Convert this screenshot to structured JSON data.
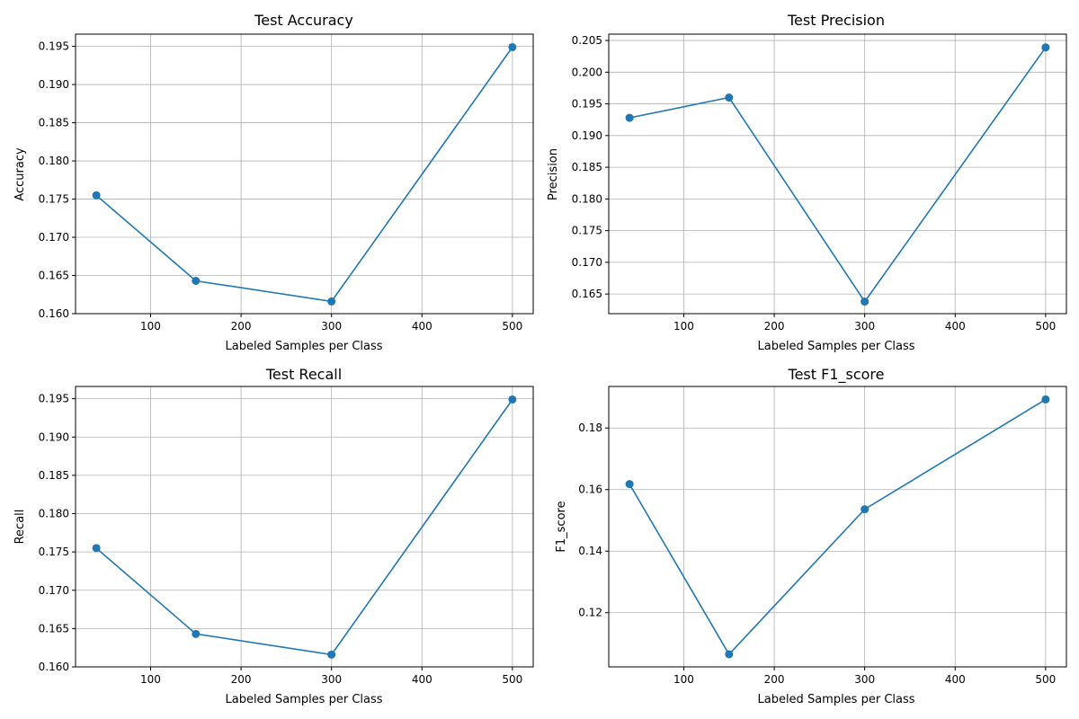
{
  "colors": {
    "series": "#1f77b4",
    "grid": "#b0b0b0",
    "axes": "#000000",
    "background": "#ffffff"
  },
  "chart_data": [
    {
      "type": "line",
      "title": "Test Accuracy",
      "xlabel": "Labeled Samples per Class",
      "ylabel": "Accuracy",
      "grid": true,
      "marker": "circle",
      "x": [
        40,
        150,
        300,
        500
      ],
      "series": [
        {
          "values": [
            0.1755,
            0.1643,
            0.1616,
            0.1949
          ]
        }
      ],
      "xlim": [
        17,
        523
      ],
      "ylim": [
        0.16,
        0.1966
      ],
      "xticks": [
        100,
        200,
        300,
        400,
        500
      ],
      "yticks": [
        0.16,
        0.165,
        0.17,
        0.175,
        0.18,
        0.185,
        0.19,
        0.195
      ],
      "xtick_labels": [
        "100",
        "200",
        "300",
        "400",
        "500"
      ],
      "ytick_labels": [
        "0.160",
        "0.165",
        "0.170",
        "0.175",
        "0.180",
        "0.185",
        "0.190",
        "0.195"
      ]
    },
    {
      "type": "line",
      "title": "Test Precision",
      "xlabel": "Labeled Samples per Class",
      "ylabel": "Precision",
      "grid": true,
      "marker": "circle",
      "x": [
        40,
        150,
        300,
        500
      ],
      "series": [
        {
          "values": [
            0.1928,
            0.196,
            0.1638,
            0.2039
          ]
        }
      ],
      "xlim": [
        17,
        523
      ],
      "ylim": [
        0.1619,
        0.206
      ],
      "xticks": [
        100,
        200,
        300,
        400,
        500
      ],
      "yticks": [
        0.165,
        0.17,
        0.175,
        0.18,
        0.185,
        0.19,
        0.195,
        0.2,
        0.205
      ],
      "xtick_labels": [
        "100",
        "200",
        "300",
        "400",
        "500"
      ],
      "ytick_labels": [
        "0.165",
        "0.170",
        "0.175",
        "0.180",
        "0.185",
        "0.190",
        "0.195",
        "0.200",
        "0.205"
      ]
    },
    {
      "type": "line",
      "title": "Test Recall",
      "xlabel": "Labeled Samples per Class",
      "ylabel": "Recall",
      "grid": true,
      "marker": "circle",
      "x": [
        40,
        150,
        300,
        500
      ],
      "series": [
        {
          "values": [
            0.1755,
            0.1643,
            0.1616,
            0.1949
          ]
        }
      ],
      "xlim": [
        17,
        523
      ],
      "ylim": [
        0.16,
        0.1966
      ],
      "xticks": [
        100,
        200,
        300,
        400,
        500
      ],
      "yticks": [
        0.16,
        0.165,
        0.17,
        0.175,
        0.18,
        0.185,
        0.19,
        0.195
      ],
      "xtick_labels": [
        "100",
        "200",
        "300",
        "400",
        "500"
      ],
      "ytick_labels": [
        "0.160",
        "0.165",
        "0.170",
        "0.175",
        "0.180",
        "0.185",
        "0.190",
        "0.195"
      ]
    },
    {
      "type": "line",
      "title": "Test F1_score",
      "xlabel": "Labeled Samples per Class",
      "ylabel": "F1_score",
      "grid": true,
      "marker": "circle",
      "x": [
        40,
        150,
        300,
        500
      ],
      "series": [
        {
          "values": [
            0.1618,
            0.1065,
            0.1536,
            0.1893
          ]
        }
      ],
      "xlim": [
        17,
        523
      ],
      "ylim": [
        0.1024,
        0.1935
      ],
      "xticks": [
        100,
        200,
        300,
        400,
        500
      ],
      "yticks": [
        0.12,
        0.14,
        0.16,
        0.18
      ],
      "xtick_labels": [
        "100",
        "200",
        "300",
        "400",
        "500"
      ],
      "ytick_labels": [
        "0.12",
        "0.14",
        "0.16",
        "0.18"
      ]
    }
  ]
}
